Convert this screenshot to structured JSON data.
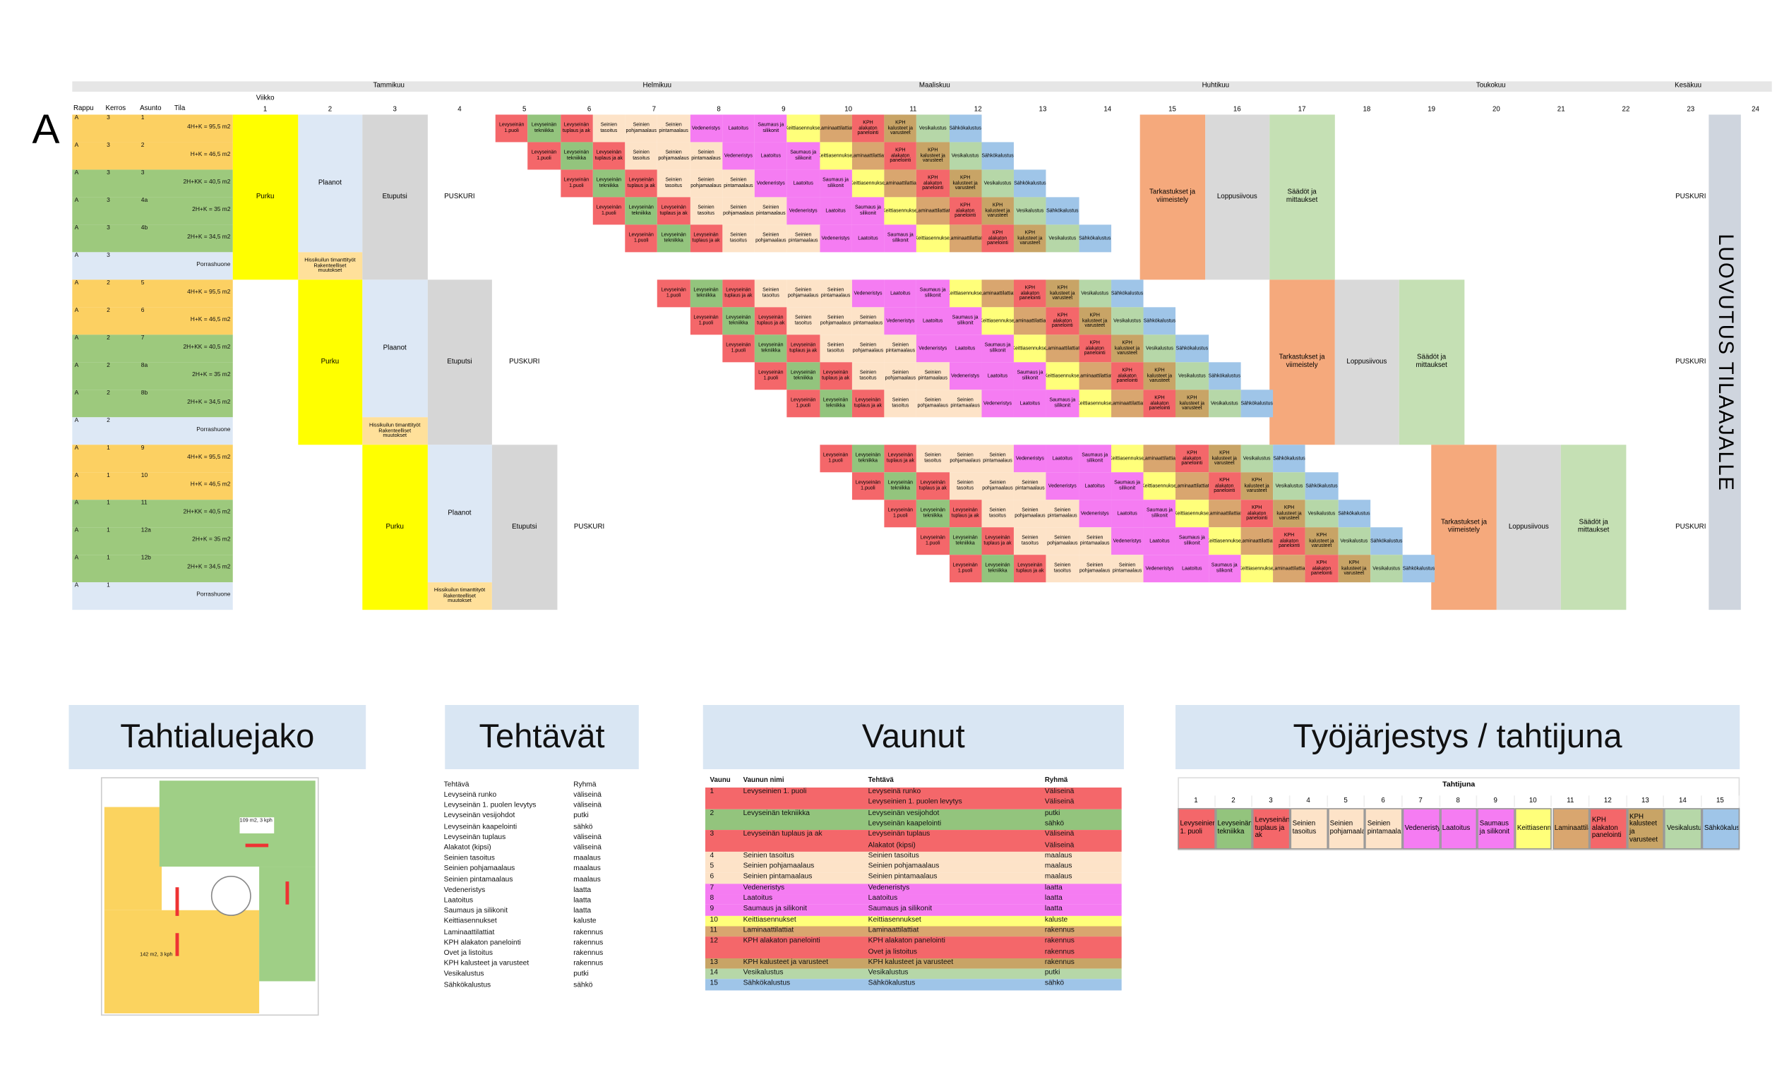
{
  "gantt": {
    "big_label": "A",
    "viikko": "Viikko",
    "months": [
      "Tammikuu",
      "Helmikuu",
      "Maaliskuu",
      "Huhtikuu",
      "Toukokuu",
      "Kesäkuu"
    ],
    "headers": [
      "Rappu",
      "Kerros",
      "Asunto",
      "Tila"
    ],
    "weeks": [
      1,
      2,
      3,
      4,
      5,
      6,
      7,
      8,
      9,
      10,
      11,
      12,
      13,
      14,
      15,
      16,
      17,
      18,
      19,
      20,
      21,
      22,
      23,
      24
    ],
    "blocks": [
      {
        "rows": [
          {
            "rappu": "A",
            "kerros": "3",
            "asunto": "1",
            "tila": "4H+K = 95,5 m2",
            "color": "#fcd062"
          },
          {
            "rappu": "A",
            "kerros": "3",
            "asunto": "2",
            "tila": "H+K = 46,5 m2",
            "color": "#fcd062"
          },
          {
            "rappu": "A",
            "kerros": "3",
            "asunto": "3",
            "tila": "2H+KK = 40,5 m2",
            "color": "#9dc97d"
          },
          {
            "rappu": "A",
            "kerros": "3",
            "asunto": "4a",
            "tila": "2H+K = 35 m2",
            "color": "#9dc97d"
          },
          {
            "rappu": "A",
            "kerros": "3",
            "asunto": "4b",
            "tila": "2H+K = 34,5 m2",
            "color": "#9dc97d"
          },
          {
            "rappu": "A",
            "kerros": "3",
            "tila": "Porrashuone",
            "color": "#dde8f5"
          }
        ]
      },
      {
        "rows": [
          {
            "rappu": "A",
            "kerros": "2",
            "asunto": "5",
            "tila": "4H+K = 95,5 m2",
            "color": "#fcd062"
          },
          {
            "rappu": "A",
            "kerros": "2",
            "asunto": "6",
            "tila": "H+K = 46,5 m2",
            "color": "#fcd062"
          },
          {
            "rappu": "A",
            "kerros": "2",
            "asunto": "7",
            "tila": "2H+KK = 40,5 m2",
            "color": "#9dc97d"
          },
          {
            "rappu": "A",
            "kerros": "2",
            "asunto": "8a",
            "tila": "2H+K = 35 m2",
            "color": "#9dc97d"
          },
          {
            "rappu": "A",
            "kerros": "2",
            "asunto": "8b",
            "tila": "2H+K = 34,5 m2",
            "color": "#9dc97d"
          },
          {
            "rappu": "A",
            "kerros": "2",
            "tila": "Porrashuone",
            "color": "#dde8f5"
          }
        ]
      },
      {
        "rows": [
          {
            "rappu": "A",
            "kerros": "1",
            "asunto": "9",
            "tila": "4H+K = 95,5 m2",
            "color": "#fcd062"
          },
          {
            "rappu": "A",
            "kerros": "1",
            "asunto": "10",
            "tila": "H+K = 46,5 m2",
            "color": "#fcd062"
          },
          {
            "rappu": "A",
            "kerros": "1",
            "asunto": "11",
            "tila": "2H+KK = 40,5 m2",
            "color": "#9dc97d"
          },
          {
            "rappu": "A",
            "kerros": "1",
            "asunto": "12a",
            "tila": "2H+K = 35 m2",
            "color": "#9dc97d"
          },
          {
            "rappu": "A",
            "kerros": "1",
            "asunto": "12b",
            "tila": "2H+K = 34,5 m2",
            "color": "#9dc97d"
          },
          {
            "rappu": "A",
            "kerros": "1",
            "tila": "Porrashuone",
            "color": "#dde8f5"
          }
        ]
      }
    ],
    "phases": {
      "purku": "Purku",
      "plaanot": "Plaanot",
      "hissi": "Hissikuilun timanttityöt Rakenteelliset muutokset",
      "etuputsi": "Etuputsi",
      "puskuri": "PUSKURI",
      "tarkastukset": "Tarkastukset ja viimeistely",
      "loppusiivous": "Loppusiivous",
      "saadot": "Säädöt ja mittaukset"
    },
    "cascade_tasks": [
      "Levyseinän 1.puoli",
      "Levyseinän tekniikka",
      "Levyseinän tuplaus ja ak",
      "Seinien tasoitus",
      "Seinien pohjamaalaus",
      "Seinien pintamaalaus",
      "Vedeneristys",
      "Laatoitus",
      "Saumaus ja silikonit",
      "Keittiasennukset",
      "Laminaattilattiat",
      "KPH alakaton panelointi",
      "KPH kalusteet ja varusteet",
      "Vesikalustus",
      "Sähkökalustus"
    ],
    "luovutus": "LUOVUTUS TILAAJALLE"
  },
  "tahtialuejako": {
    "title": "Tahtialuejako",
    "labels": [
      "109 m2, 3 kph",
      "142 m2, 3 kph"
    ]
  },
  "tehtavat": {
    "title": "Tehtävät",
    "header": [
      "Tehtävä",
      "Ryhmä"
    ],
    "rows": [
      [
        "Levyseinä runko",
        "väliseinä"
      ],
      [
        "Levyseinän 1. puolen levytys",
        "väliseinä"
      ],
      [
        "Levyseinän vesijohdot",
        "putki"
      ],
      [
        "Levyseinän kaapelointi",
        "sähkö"
      ],
      [
        "Levyseinän tuplaus",
        "väliseinä"
      ],
      [
        "Alakatot (kipsi)",
        "väliseinä"
      ],
      [
        "Seinien tasoitus",
        "maalaus"
      ],
      [
        "Seinien pohjamaalaus",
        "maalaus"
      ],
      [
        "Seinien pintamaalaus",
        "maalaus"
      ],
      [
        "Vedeneristys",
        "laatta"
      ],
      [
        "Laatoitus",
        "laatta"
      ],
      [
        "Saumaus ja silikonit",
        "laatta"
      ],
      [
        "Keittiasennukset",
        "kaluste"
      ],
      [
        "Laminaattilattiat",
        "rakennus"
      ],
      [
        "KPH alakaton panelointi",
        "rakennus"
      ],
      [
        "Ovet ja listoitus",
        "rakennus"
      ],
      [
        "KPH kalusteet ja varusteet",
        "rakennus"
      ],
      [
        "Vesikalustus",
        "putki"
      ],
      [
        "Sähkökalustus",
        "sähkö"
      ]
    ]
  },
  "vaunut": {
    "title": "Vaunut",
    "header": [
      "Vaunu",
      "Vaunun nimi",
      "Tehtävä",
      "Ryhmä"
    ],
    "rows": [
      {
        "vaunu": "1",
        "name": "Levyseinien 1. puoli",
        "tasks": [
          [
            "Levyseinä runko",
            "Väliseinä"
          ],
          [
            "Levyseinien 1. puolen levytys",
            "Väliseinä"
          ]
        ]
      },
      {
        "vaunu": "2",
        "name": "Levyseinän tekniikka",
        "tasks": [
          [
            "Levyseinän vesijohdot",
            "putki"
          ],
          [
            "Levyseinän kaapelointi",
            "sähkö"
          ]
        ]
      },
      {
        "vaunu": "3",
        "name": "Levyseinän tuplaus ja ak",
        "tasks": [
          [
            "Levyseinän tuplaus",
            "Väliseinä"
          ],
          [
            "Alakatot (kipsi)",
            "Väliseinä"
          ]
        ]
      },
      {
        "vaunu": "4",
        "name": "Seinien tasoitus",
        "tasks": [
          [
            "Seinien tasoitus",
            "maalaus"
          ]
        ]
      },
      {
        "vaunu": "5",
        "name": "Seinien pohjamaalaus",
        "tasks": [
          [
            "Seinien pohjamaalaus",
            "maalaus"
          ]
        ]
      },
      {
        "vaunu": "6",
        "name": "Seinien pintamaalaus",
        "tasks": [
          [
            "Seinien pintamaalaus",
            "maalaus"
          ]
        ]
      },
      {
        "vaunu": "7",
        "name": "Vedeneristys",
        "tasks": [
          [
            "Vedeneristys",
            "laatta"
          ]
        ]
      },
      {
        "vaunu": "8",
        "name": "Laatoitus",
        "tasks": [
          [
            "Laatoitus",
            "laatta"
          ]
        ]
      },
      {
        "vaunu": "9",
        "name": "Saumaus ja silikonit",
        "tasks": [
          [
            "Saumaus ja silikonit",
            "laatta"
          ]
        ]
      },
      {
        "vaunu": "10",
        "name": "Keittiasennukset",
        "tasks": [
          [
            "Keittiasennukset",
            "kaluste"
          ]
        ]
      },
      {
        "vaunu": "11",
        "name": "Laminaattilattiat",
        "tasks": [
          [
            "Laminaattilattiat",
            "rakennus"
          ]
        ]
      },
      {
        "vaunu": "12",
        "name": "KPH alakaton panelointi",
        "tasks": [
          [
            "KPH alakaton panelointi",
            "rakennus"
          ],
          [
            "Ovet ja listoitus",
            "rakennus"
          ]
        ]
      },
      {
        "vaunu": "13",
        "name": "KPH kalusteet ja varusteet",
        "tasks": [
          [
            "KPH kalusteet ja varusteet",
            "rakennus"
          ]
        ]
      },
      {
        "vaunu": "14",
        "name": "Vesikalustus",
        "tasks": [
          [
            "Vesikalustus",
            "putki"
          ]
        ]
      },
      {
        "vaunu": "15",
        "name": "Sähkökalustus",
        "tasks": [
          [
            "Sähkökalustus",
            "sähkö"
          ]
        ]
      }
    ]
  },
  "tahtijuna": {
    "title": "Työjärjestys / tahtijuna",
    "subtitle": "Tahtijuna",
    "numbers": [
      1,
      2,
      3,
      4,
      5,
      6,
      7,
      8,
      9,
      10,
      11,
      12,
      13,
      14,
      15
    ],
    "labels": [
      "Levyseinien 1. puoli",
      "Levyseinän tekniikka",
      "Levyseinän tuplaus ja ak",
      "Seinien tasoitus",
      "Seinien pohjamaalaus",
      "Seinien pintamaalaus",
      "Vedeneristys",
      "Laatoitus",
      "Saumaus ja silikonit",
      "Keittiasennukset",
      "Laminaattilattiat",
      "KPH alakaton panelointi",
      "KPH kalusteet ja varusteet",
      "Vesikalustus",
      "Sähkökalustus"
    ],
    "colors": [
      "#f4676a",
      "#93c47d",
      "#f4676a",
      "#fde3c8",
      "#fde3c8",
      "#fde3c8",
      "#f57cf2",
      "#f57cf2",
      "#f57cf2",
      "#ffff7a",
      "#d9a66f",
      "#f4676a",
      "#c8a466",
      "#b6d7a8",
      "#9fc5e8"
    ]
  }
}
